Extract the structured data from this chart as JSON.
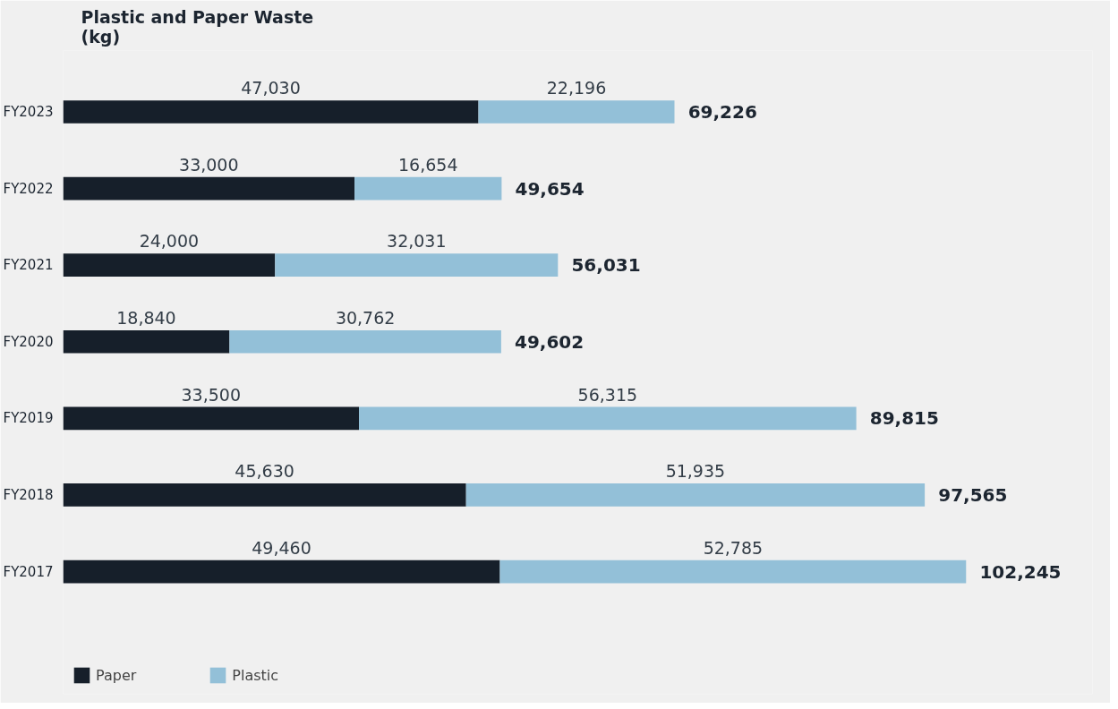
{
  "chart_data": {
    "type": "bar",
    "orientation": "horizontal",
    "stacked": true,
    "title": "Plastic and Paper Waste\n(kg)",
    "categories": [
      "FY2023",
      "FY2022",
      "FY2021",
      "FY2020",
      "FY2019",
      "FY2018",
      "FY2017"
    ],
    "series": [
      {
        "name": "Paper",
        "color": "#161f2a",
        "values": [
          47030,
          33000,
          24000,
          18840,
          33500,
          45630,
          49460
        ],
        "value_labels": [
          "47,030",
          "33,000",
          "24,000",
          "18,840",
          "33,500",
          "45,630",
          "49,460"
        ]
      },
      {
        "name": "Plastic",
        "color": "#93c0d8",
        "values": [
          22196,
          16654,
          32031,
          30762,
          56315,
          51935,
          52785
        ],
        "value_labels": [
          "22,196",
          "16,654",
          "32,031",
          "30,762",
          "56,315",
          "51,935",
          "52,785"
        ]
      }
    ],
    "totals": [
      "69,226",
      "49,654",
      "56,031",
      "49,602",
      "89,815",
      "97,565",
      "102,245"
    ],
    "legend": "bottom left",
    "grid": false
  }
}
